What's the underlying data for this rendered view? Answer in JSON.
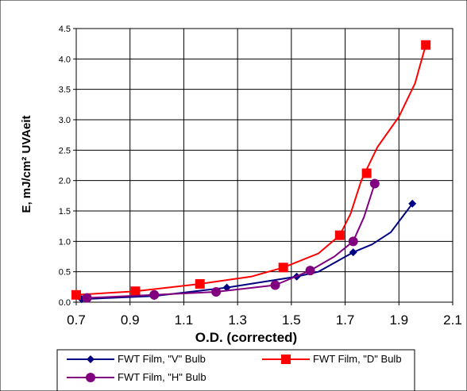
{
  "chart_data": {
    "type": "line",
    "xlabel": "O.D. (corrected)",
    "ylabel": "E, mJ/cm² UVAeit",
    "xlim": [
      0.7,
      2.1
    ],
    "ylim": [
      0,
      4.5
    ],
    "x_ticks": [
      "0.7",
      "0.9",
      "1.1",
      "1.3",
      "1.5",
      "1.7",
      "1.9",
      "2.1"
    ],
    "y_ticks": [
      "0.0",
      "0.5",
      "1.0",
      "1.5",
      "2.0",
      "2.5",
      "3.0",
      "3.5",
      "4.0",
      "4.5"
    ],
    "grid": true,
    "legend_position": "bottom",
    "series": [
      {
        "name": "FWT Film, \"V\" Bulb",
        "color": "#000080",
        "marker": "diamond",
        "points": [
          [
            0.72,
            0.05
          ],
          [
            0.99,
            0.1
          ],
          [
            1.26,
            0.24
          ],
          [
            1.52,
            0.42
          ],
          [
            1.73,
            0.82
          ],
          [
            1.95,
            1.62
          ]
        ],
        "curve": [
          [
            0.72,
            0.05
          ],
          [
            0.99,
            0.1
          ],
          [
            1.26,
            0.24
          ],
          [
            1.52,
            0.42
          ],
          [
            1.6,
            0.5
          ],
          [
            1.73,
            0.82
          ],
          [
            1.8,
            0.95
          ],
          [
            1.87,
            1.15
          ],
          [
            1.95,
            1.62
          ]
        ]
      },
      {
        "name": "FWT Film, \"D\" Bulb",
        "color": "#ff0000",
        "marker": "square",
        "points": [
          [
            0.7,
            0.12
          ],
          [
            0.92,
            0.18
          ],
          [
            1.16,
            0.3
          ],
          [
            1.47,
            0.57
          ],
          [
            1.68,
            1.1
          ],
          [
            1.78,
            2.12
          ],
          [
            2.0,
            4.23
          ]
        ],
        "curve": [
          [
            0.7,
            0.12
          ],
          [
            0.92,
            0.18
          ],
          [
            1.16,
            0.3
          ],
          [
            1.35,
            0.42
          ],
          [
            1.47,
            0.57
          ],
          [
            1.6,
            0.8
          ],
          [
            1.68,
            1.1
          ],
          [
            1.72,
            1.45
          ],
          [
            1.76,
            2.0
          ],
          [
            1.82,
            2.55
          ],
          [
            1.9,
            3.05
          ],
          [
            1.96,
            3.6
          ],
          [
            2.0,
            4.23
          ]
        ]
      },
      {
        "name": "FWT Film, \"H\" Bulb",
        "color": "#800080",
        "marker": "circle",
        "points": [
          [
            0.74,
            0.07
          ],
          [
            0.99,
            0.12
          ],
          [
            1.22,
            0.17
          ],
          [
            1.44,
            0.28
          ],
          [
            1.57,
            0.52
          ],
          [
            1.73,
            1.0
          ],
          [
            1.81,
            1.95
          ]
        ],
        "curve": [
          [
            0.74,
            0.07
          ],
          [
            0.99,
            0.12
          ],
          [
            1.22,
            0.17
          ],
          [
            1.44,
            0.28
          ],
          [
            1.57,
            0.52
          ],
          [
            1.66,
            0.75
          ],
          [
            1.73,
            1.0
          ],
          [
            1.77,
            1.4
          ],
          [
            1.81,
            1.95
          ]
        ]
      }
    ]
  }
}
